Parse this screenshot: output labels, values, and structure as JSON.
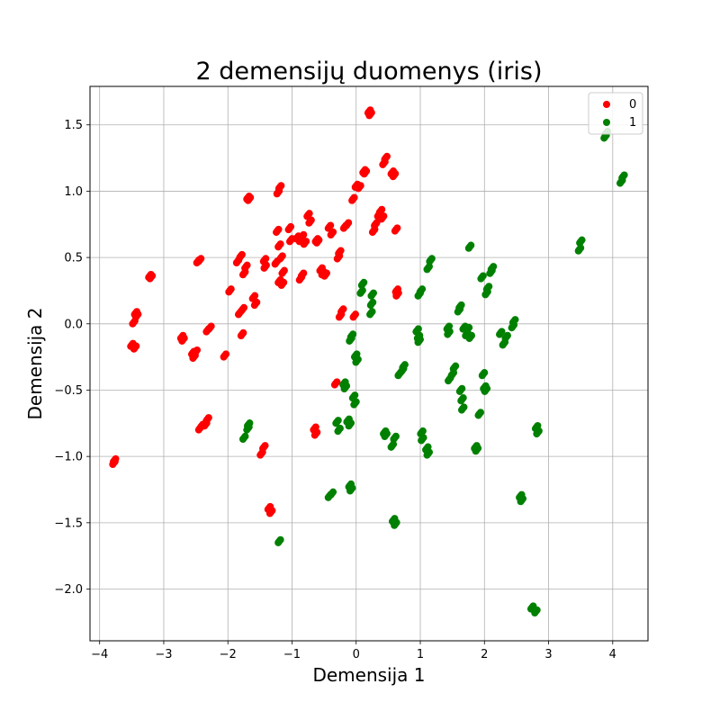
{
  "chart_data": {
    "type": "scatter",
    "title": "2 demensijų duomenys (iris)",
    "xlabel": "Demensija 1",
    "ylabel": "Demensija 2",
    "xlim": [
      -4.15,
      4.55
    ],
    "ylim": [
      -2.39,
      1.79
    ],
    "xticks": [
      -4,
      -3,
      -2,
      -1,
      0,
      1,
      2,
      3,
      4
    ],
    "yticks": [
      -2.0,
      -1.5,
      -1.0,
      -0.5,
      0.0,
      0.5,
      1.0,
      1.5
    ],
    "xtick_labels": [
      "−4",
      "−3",
      "−2",
      "−1",
      "0",
      "1",
      "2",
      "3",
      "4"
    ],
    "ytick_labels": [
      "−2.0",
      "−1.5",
      "−1.0",
      "−0.5",
      "0.0",
      "0.5",
      "1.0",
      "1.5"
    ],
    "grid": true,
    "legend_position": "top-right",
    "series": [
      {
        "name": "0",
        "color": "#ff0000",
        "points": [
          [
            -3.78,
            -1.05
          ],
          [
            -3.77,
            -1.03
          ],
          [
            -3.5,
            -0.16
          ],
          [
            -3.45,
            -0.18
          ],
          [
            -3.47,
            0.01
          ],
          [
            -3.44,
            0.08
          ],
          [
            -3.42,
            0.06
          ],
          [
            -3.22,
            0.36
          ],
          [
            -3.2,
            0.35
          ],
          [
            -2.72,
            -0.1
          ],
          [
            -2.7,
            -0.12
          ],
          [
            -2.55,
            -0.22
          ],
          [
            -2.53,
            -0.25
          ],
          [
            -2.5,
            -0.21
          ],
          [
            -2.47,
            0.47
          ],
          [
            -2.44,
            0.48
          ],
          [
            -2.44,
            -0.79
          ],
          [
            -2.41,
            -0.77
          ],
          [
            -2.35,
            -0.76
          ],
          [
            -2.32,
            -0.72
          ],
          [
            -2.32,
            -0.05
          ],
          [
            -2.28,
            -0.03
          ],
          [
            -2.05,
            -0.24
          ],
          [
            -1.97,
            0.25
          ],
          [
            -1.85,
            0.47
          ],
          [
            -1.8,
            0.51
          ],
          [
            -1.82,
            0.08
          ],
          [
            -1.77,
            0.11
          ],
          [
            -1.78,
            -0.08
          ],
          [
            -1.75,
            0.38
          ],
          [
            -1.72,
            0.43
          ],
          [
            -1.69,
            0.95
          ],
          [
            -1.67,
            0.94
          ],
          [
            -1.6,
            0.2
          ],
          [
            -1.57,
            0.15
          ],
          [
            -1.48,
            -0.98
          ],
          [
            -1.44,
            -0.93
          ],
          [
            -1.43,
            0.48
          ],
          [
            -1.42,
            0.43
          ],
          [
            -1.36,
            -1.39
          ],
          [
            -1.33,
            -1.42
          ],
          [
            -1.23,
            0.7
          ],
          [
            -1.2,
            0.59
          ],
          [
            -1.25,
            0.46
          ],
          [
            -1.22,
            0.99
          ],
          [
            -1.19,
            1.03
          ],
          [
            -1.17,
            0.5
          ],
          [
            -1.14,
            0.39
          ],
          [
            -1.2,
            0.32
          ],
          [
            -1.15,
            0.3
          ],
          [
            -1.04,
            0.72
          ],
          [
            -1.02,
            0.63
          ],
          [
            -0.92,
            0.65
          ],
          [
            -0.87,
            0.63
          ],
          [
            -0.84,
            0.66
          ],
          [
            -0.8,
            0.61
          ],
          [
            -0.75,
            0.82
          ],
          [
            -0.72,
            0.77
          ],
          [
            -0.87,
            0.34
          ],
          [
            -0.84,
            0.37
          ],
          [
            -0.65,
            -0.79
          ],
          [
            -0.63,
            -0.83
          ],
          [
            -0.62,
            0.63
          ],
          [
            -0.6,
            0.62
          ],
          [
            -0.55,
            0.41
          ],
          [
            -0.52,
            0.38
          ],
          [
            -0.48,
            0.37
          ],
          [
            -0.42,
            0.73
          ],
          [
            -0.38,
            0.68
          ],
          [
            -0.32,
            -0.45
          ],
          [
            -0.28,
            0.5
          ],
          [
            -0.26,
            0.54
          ],
          [
            -0.25,
            0.06
          ],
          [
            -0.22,
            0.1
          ],
          [
            -0.18,
            0.73
          ],
          [
            -0.14,
            0.75
          ],
          [
            -0.05,
            0.94
          ],
          [
            -0.03,
            0.06
          ],
          [
            0.0,
            1.04
          ],
          [
            0.05,
            1.03
          ],
          [
            0.12,
            1.15
          ],
          [
            0.14,
            1.14
          ],
          [
            0.2,
            1.6
          ],
          [
            0.22,
            1.58
          ],
          [
            0.27,
            0.7
          ],
          [
            0.3,
            0.75
          ],
          [
            0.35,
            0.82
          ],
          [
            0.38,
            0.85
          ],
          [
            0.41,
            0.8
          ],
          [
            0.43,
            1.21
          ],
          [
            0.46,
            1.25
          ],
          [
            0.56,
            1.14
          ],
          [
            0.59,
            1.12
          ],
          [
            0.62,
            0.71
          ],
          [
            0.64,
            0.22
          ],
          [
            0.63,
            0.25
          ]
        ]
      },
      {
        "name": "1",
        "color": "#008000",
        "points": [
          [
            -1.75,
            -0.86
          ],
          [
            -1.69,
            -0.79
          ],
          [
            -1.68,
            -0.76
          ],
          [
            -1.2,
            -1.64
          ],
          [
            -0.42,
            -1.3
          ],
          [
            -0.38,
            -1.28
          ],
          [
            -0.3,
            -0.74
          ],
          [
            -0.27,
            -0.8
          ],
          [
            -0.19,
            -0.45
          ],
          [
            -0.17,
            -0.48
          ],
          [
            -0.13,
            -0.73
          ],
          [
            -0.1,
            -0.76
          ],
          [
            -0.1,
            -1.22
          ],
          [
            -0.08,
            -1.25
          ],
          [
            -0.09,
            -0.12
          ],
          [
            -0.07,
            -0.09
          ],
          [
            -0.04,
            -0.55
          ],
          [
            -0.02,
            -0.6
          ],
          [
            -0.01,
            -0.24
          ],
          [
            0.01,
            -0.28
          ],
          [
            0.08,
            0.24
          ],
          [
            0.1,
            0.3
          ],
          [
            0.23,
            0.08
          ],
          [
            0.24,
            0.15
          ],
          [
            0.25,
            0.22
          ],
          [
            0.44,
            -0.82
          ],
          [
            0.46,
            -0.84
          ],
          [
            0.56,
            -0.92
          ],
          [
            0.6,
            -0.86
          ],
          [
            0.58,
            -1.48
          ],
          [
            0.61,
            -1.51
          ],
          [
            0.67,
            -0.38
          ],
          [
            0.72,
            -0.35
          ],
          [
            0.74,
            -0.32
          ],
          [
            0.95,
            -0.05
          ],
          [
            0.97,
            -0.1
          ],
          [
            0.98,
            -0.13
          ],
          [
            0.98,
            0.22
          ],
          [
            1.01,
            0.25
          ],
          [
            1.02,
            -0.82
          ],
          [
            1.03,
            -0.87
          ],
          [
            1.1,
            -0.94
          ],
          [
            1.12,
            -0.98
          ],
          [
            1.12,
            0.42
          ],
          [
            1.16,
            0.48
          ],
          [
            1.43,
            -0.03
          ],
          [
            1.44,
            -0.07
          ],
          [
            1.45,
            -0.42
          ],
          [
            1.5,
            -0.38
          ],
          [
            1.53,
            -0.33
          ],
          [
            1.6,
            0.1
          ],
          [
            1.62,
            0.13
          ],
          [
            1.63,
            -0.5
          ],
          [
            1.65,
            -0.57
          ],
          [
            1.66,
            -0.64
          ],
          [
            1.68,
            -0.03
          ],
          [
            1.72,
            -0.08
          ],
          [
            1.74,
            -0.04
          ],
          [
            1.77,
            0.58
          ],
          [
            1.78,
            -0.1
          ],
          [
            1.86,
            -0.93
          ],
          [
            1.88,
            -0.95
          ],
          [
            1.92,
            -0.68
          ],
          [
            1.96,
            0.35
          ],
          [
            1.98,
            -0.38
          ],
          [
            2.0,
            -0.48
          ],
          [
            2.02,
            -0.5
          ],
          [
            2.03,
            0.23
          ],
          [
            2.05,
            0.27
          ],
          [
            2.1,
            0.39
          ],
          [
            2.12,
            0.42
          ],
          [
            2.25,
            -0.07
          ],
          [
            2.3,
            -0.15
          ],
          [
            2.34,
            -0.1
          ],
          [
            2.44,
            -0.02
          ],
          [
            2.46,
            0.02
          ],
          [
            2.56,
            -1.3
          ],
          [
            2.58,
            -1.33
          ],
          [
            2.74,
            -2.14
          ],
          [
            2.8,
            -2.17
          ],
          [
            2.81,
            -0.78
          ],
          [
            2.83,
            -0.82
          ],
          [
            3.48,
            0.56
          ],
          [
            3.5,
            0.62
          ],
          [
            3.88,
            1.41
          ],
          [
            3.9,
            1.44
          ],
          [
            4.13,
            1.07
          ],
          [
            4.16,
            1.11
          ]
        ]
      }
    ]
  }
}
